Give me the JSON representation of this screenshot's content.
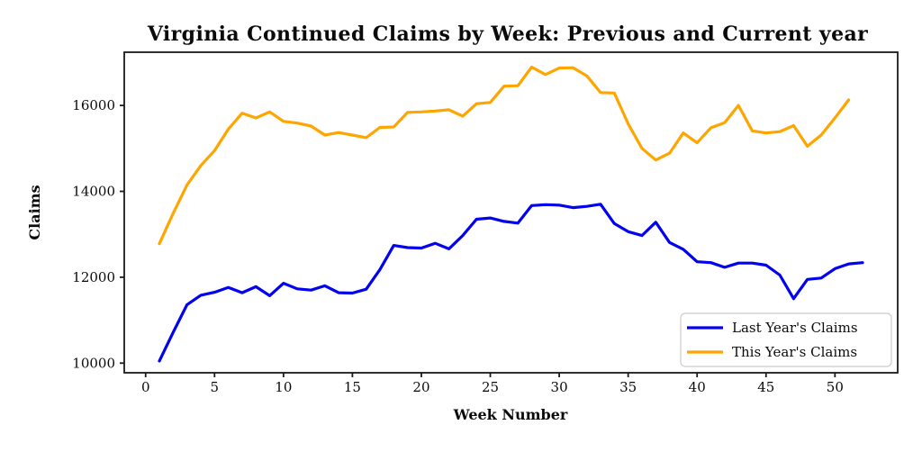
{
  "figure": {
    "background": "#ffffff",
    "text_color": "#0b0b0b",
    "spine_color": "#1a1a1a"
  },
  "chart_data": {
    "type": "line",
    "title": "Virginia Continued Claims by Week: Previous and Current year",
    "xlabel": "Week Number",
    "ylabel": "Claims",
    "x": [
      1,
      2,
      3,
      4,
      5,
      6,
      7,
      8,
      9,
      10,
      11,
      12,
      13,
      14,
      15,
      16,
      17,
      18,
      19,
      20,
      21,
      22,
      23,
      24,
      25,
      26,
      27,
      28,
      29,
      30,
      31,
      32,
      33,
      34,
      35,
      36,
      37,
      38,
      39,
      40,
      41,
      42,
      43,
      44,
      45,
      46,
      47,
      48,
      49,
      50,
      51,
      52
    ],
    "series": [
      {
        "name": "Last Year's Claims",
        "color": "#0202EE",
        "values": [
          10050,
          10720,
          11360,
          11580,
          11650,
          11760,
          11640,
          11780,
          11570,
          11860,
          11730,
          11700,
          11800,
          11640,
          11630,
          11720,
          12180,
          12740,
          12690,
          12680,
          12790,
          12660,
          12970,
          13350,
          13380,
          13300,
          13260,
          13670,
          13690,
          13680,
          13620,
          13650,
          13700,
          13250,
          13060,
          12970,
          13280,
          12810,
          12650,
          12360,
          12340,
          12230,
          12330,
          12330,
          12280,
          12050,
          11500,
          11950,
          11980,
          12200,
          12310,
          12340
        ]
      },
      {
        "name": "This Year's Claims",
        "color": "#FFA500",
        "values": [
          12780,
          13490,
          14150,
          14600,
          14950,
          15450,
          15820,
          15710,
          15850,
          15630,
          15590,
          15520,
          15310,
          15370,
          15310,
          15250,
          15490,
          15500,
          15840,
          15850,
          15870,
          15900,
          15750,
          16040,
          16070,
          16450,
          16460,
          16895,
          16720,
          16870,
          16880,
          16690,
          16300,
          16290,
          15570,
          15000,
          14730,
          14890,
          15360,
          15130,
          15480,
          15600,
          16000,
          15410,
          15360,
          15390,
          15530,
          15050,
          15310,
          15710,
          16130
        ]
      }
    ],
    "xlim": [
      -1.55,
      54.55
    ],
    "ylim": [
      9775,
      17240
    ],
    "xticks": [
      0,
      5,
      10,
      15,
      20,
      25,
      30,
      35,
      40,
      45,
      50
    ],
    "yticks": [
      10000,
      12000,
      14000,
      16000
    ],
    "grid": false,
    "legend_position": "lower right",
    "line_width": 3.2
  }
}
